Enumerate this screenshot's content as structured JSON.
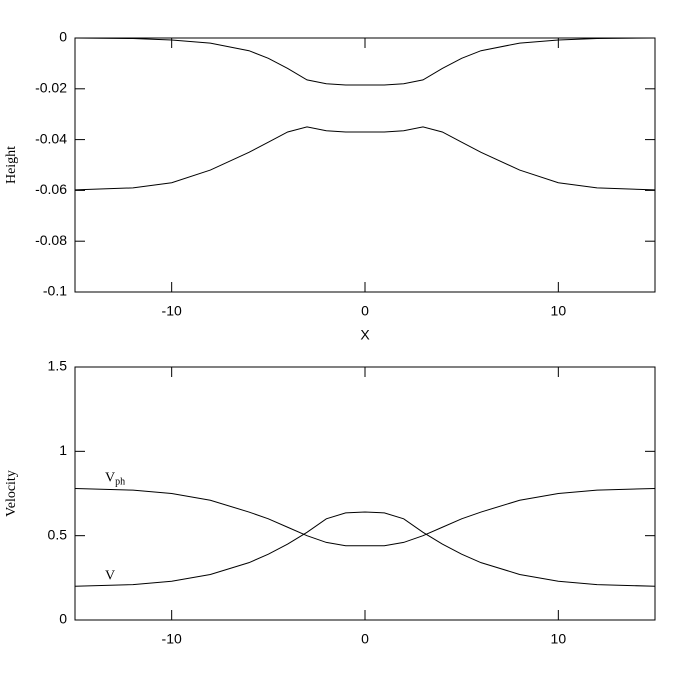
{
  "chart_data": [
    {
      "type": "line",
      "y_label": "Height",
      "x_label": "X",
      "xlim": [
        -15,
        15
      ],
      "xticks": [
        -10,
        0,
        10
      ],
      "ylim": [
        -0.1,
        0
      ],
      "yticks": [
        0,
        -0.02,
        -0.04,
        -0.06,
        -0.08,
        -0.1
      ],
      "x": [
        -15,
        -12,
        -10,
        -8,
        -6,
        -5,
        -4,
        -3,
        -2,
        -1,
        0,
        1,
        2,
        3,
        4,
        5,
        6,
        8,
        10,
        12,
        15
      ],
      "series": [
        {
          "color": "#000000",
          "values": [
            0,
            -0.0002,
            -0.0008,
            -0.002,
            -0.005,
            -0.008,
            -0.012,
            -0.0165,
            -0.018,
            -0.0185,
            -0.0185,
            -0.0185,
            -0.018,
            -0.0165,
            -0.012,
            -0.008,
            -0.005,
            -0.002,
            -0.0008,
            -0.0002,
            0
          ]
        },
        {
          "color": "#000000",
          "values": [
            -0.0598,
            -0.059,
            -0.057,
            -0.052,
            -0.045,
            -0.041,
            -0.037,
            -0.035,
            -0.0365,
            -0.037,
            -0.037,
            -0.037,
            -0.0365,
            -0.035,
            -0.037,
            -0.041,
            -0.045,
            -0.052,
            -0.057,
            -0.059,
            -0.0598
          ]
        }
      ]
    },
    {
      "type": "line",
      "y_label": "Velocity",
      "xlim": [
        -15,
        15
      ],
      "xticks": [
        -10,
        0,
        10
      ],
      "ylim": [
        0,
        1.5
      ],
      "yticks": [
        0,
        0.5,
        1,
        1.5
      ],
      "x": [
        -15,
        -12,
        -10,
        -8,
        -6,
        -5,
        -4,
        -3,
        -2,
        -1,
        0,
        1,
        2,
        3,
        4,
        5,
        6,
        8,
        10,
        12,
        15
      ],
      "series": [
        {
          "name": "V",
          "name_subscript": "ph",
          "color": "#000000",
          "values": [
            0.78,
            0.77,
            0.75,
            0.71,
            0.64,
            0.6,
            0.55,
            0.5,
            0.46,
            0.44,
            0.44,
            0.44,
            0.46,
            0.5,
            0.55,
            0.6,
            0.64,
            0.71,
            0.75,
            0.77,
            0.78
          ]
        },
        {
          "name": "V",
          "color": "#000000",
          "values": [
            0.2,
            0.21,
            0.23,
            0.27,
            0.34,
            0.39,
            0.45,
            0.52,
            0.6,
            0.635,
            0.64,
            0.635,
            0.6,
            0.52,
            0.45,
            0.39,
            0.34,
            0.27,
            0.23,
            0.21,
            0.2
          ]
        }
      ]
    }
  ]
}
